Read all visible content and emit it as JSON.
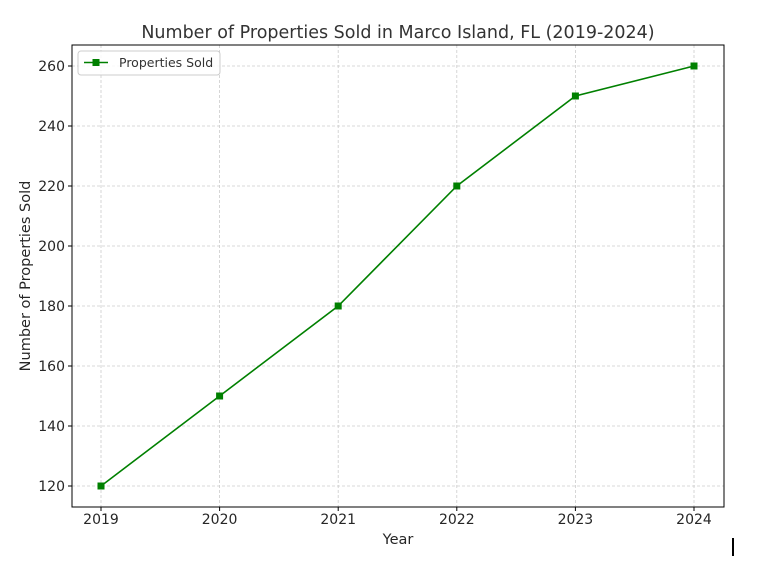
{
  "chart_data": {
    "type": "line",
    "title": "Number of Properties Sold in Marco Island, FL (2019-2024)",
    "xlabel": "Year",
    "ylabel": "Number of Properties Sold",
    "x": [
      "2019",
      "2020",
      "2021",
      "2022",
      "2023",
      "2024"
    ],
    "series": [
      {
        "name": "Properties Sold",
        "values": [
          120,
          150,
          180,
          220,
          250,
          260
        ],
        "color": "#008000",
        "marker": "square"
      }
    ],
    "yticks": [
      120,
      140,
      160,
      180,
      200,
      220,
      240,
      260
    ],
    "ylim": [
      113,
      267
    ],
    "grid": true,
    "legend_position": "top-left"
  }
}
